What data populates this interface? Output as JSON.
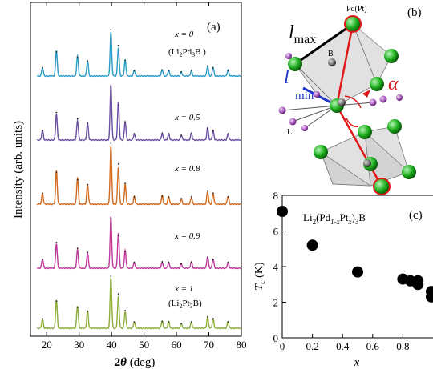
{
  "panel_a": {
    "label": "(a)",
    "xlabel_prefix": "2",
    "xlabel_theta": "θ",
    "xlabel_suffix": " (deg)",
    "ylabel": "Intensity (arb. units)",
    "colors": [
      "#2a9bc7",
      "#6a4fa3",
      "#d2691e",
      "#c0389a",
      "#8dae3a"
    ]
  },
  "panel_b": {
    "label": "(b)",
    "pd_label": "Pd(Pt)",
    "b_label": "B",
    "li_label": "Li",
    "lmax_l": "l",
    "lmax_sub": "max",
    "lmin_l": "l",
    "lmin_sub": "min",
    "alpha": "α"
  },
  "panel_c": {
    "label": "(c)",
    "formula_parts": [
      "Li",
      "2",
      "(Pd",
      "1-x",
      "Pt",
      "x",
      ")",
      "3",
      "B"
    ],
    "ylabel_T": "T",
    "ylabel_sub": "c",
    "ylabel_unit": " (K)",
    "xlabel": "x"
  },
  "chart_data": [
    {
      "type": "line",
      "title": "",
      "xlabel": "2θ (deg)",
      "ylabel": "Intensity (arb. units)",
      "xlim": [
        15,
        80
      ],
      "xticks": [
        20,
        30,
        40,
        50,
        60,
        70,
        80
      ],
      "peaks_2theta": [
        18.7,
        23.0,
        29.5,
        32.6,
        39.8,
        42.1,
        44.2,
        47.0,
        55.6,
        57.6,
        61.5,
        64.6,
        69.6,
        71.3,
        75.9
      ],
      "peak_intensities": [
        0.18,
        0.52,
        0.4,
        0.32,
        1.0,
        0.66,
        0.34,
        0.12,
        0.13,
        0.12,
        0.09,
        0.12,
        0.22,
        0.18,
        0.12
      ],
      "series": [
        {
          "name": "x = 0 (Li2Pd3B)",
          "label_parts": [
            "x = 0",
            "(Li",
            "2",
            "Pd",
            "3",
            "B )"
          ]
        },
        {
          "name": "x = 0.5",
          "label_parts": [
            "x = 0.5"
          ]
        },
        {
          "name": "x = 0.8",
          "label_parts": [
            "x = 0.8"
          ]
        },
        {
          "name": "x = 0.9",
          "label_parts": [
            "x = 0.9"
          ]
        },
        {
          "name": "x = 1 (Li2Pt3B)",
          "label_parts": [
            "x = 1",
            "(Li",
            "2",
            "Pt",
            "3",
            "B)"
          ]
        }
      ],
      "grid": false
    },
    {
      "type": "scatter",
      "title": "",
      "xlabel": "x",
      "ylabel": "Tc (K)",
      "xlim": [
        0,
        1.0
      ],
      "ylim": [
        0,
        8
      ],
      "xticks": [
        0,
        0.2,
        0.4,
        0.6,
        0.8
      ],
      "yticks": [
        0,
        2,
        4,
        6,
        8
      ],
      "points": [
        [
          0,
          7.1
        ],
        [
          0.2,
          5.2
        ],
        [
          0.5,
          3.7
        ],
        [
          0.8,
          3.3
        ],
        [
          0.85,
          3.2
        ],
        [
          0.9,
          3.0
        ],
        [
          0.9,
          3.2
        ],
        [
          1.0,
          2.6
        ],
        [
          1.0,
          2.3
        ]
      ],
      "series_color": "#000000",
      "grid": false
    }
  ]
}
